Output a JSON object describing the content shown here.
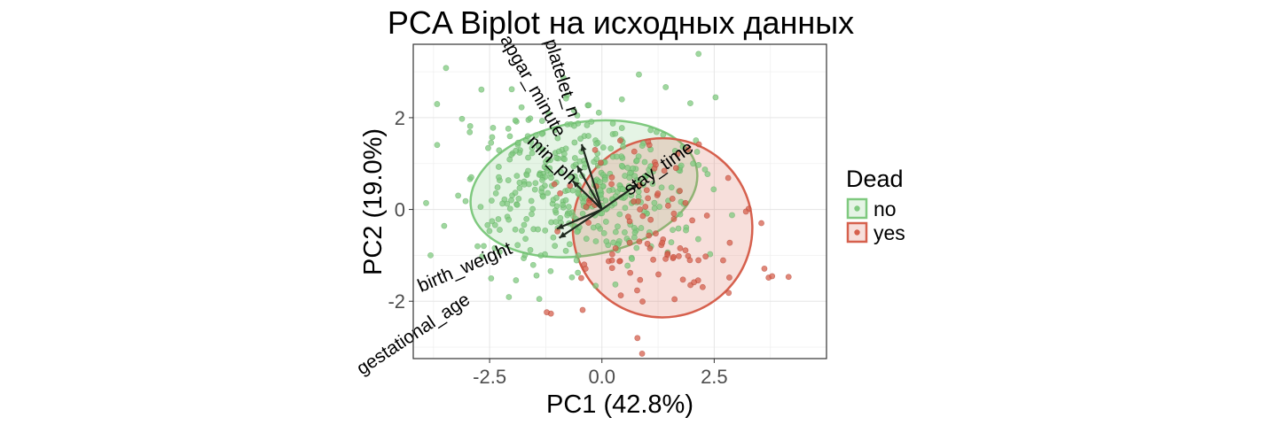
{
  "chart_data": {
    "type": "scatter",
    "title": "PCA Biplot на исходных данных",
    "xlabel": "PC1 (42.8%)",
    "ylabel": "PC2 (19.0%)",
    "xlim": [
      -4.2,
      5.0
    ],
    "ylim": [
      -3.25,
      3.6
    ],
    "x_ticks": [
      -2.5,
      0.0,
      2.5
    ],
    "x_tick_labels": [
      "-2.5",
      "0.0",
      "2.5"
    ],
    "y_ticks": [
      -2,
      0,
      2
    ],
    "y_tick_labels": [
      "-2",
      "0",
      "2"
    ],
    "grid": true,
    "legend": {
      "title": "Dead",
      "placement": "right",
      "entries": [
        {
          "label": "no",
          "color": "#7fc97f"
        },
        {
          "label": "yes",
          "color": "#d6604d"
        }
      ]
    },
    "series": [
      {
        "name": "no",
        "color": "#7fc97f",
        "ellipse": {
          "center": [
            -0.4,
            0.45
          ],
          "rx": 2.55,
          "ry": 1.45,
          "angle_deg": -10
        }
      },
      {
        "name": "yes",
        "color": "#d6604d",
        "ellipse": {
          "center": [
            1.35,
            -0.4
          ],
          "rx": 2.0,
          "ry": 1.95,
          "angle_deg": -30
        }
      }
    ],
    "loadings": [
      {
        "name": "apgar_minute",
        "x": -0.55,
        "y": 0.95
      },
      {
        "name": "platelet_n",
        "x": -0.45,
        "y": 1.42
      },
      {
        "name": "min_ph",
        "x": -0.65,
        "y": 0.62
      },
      {
        "name": "stay_time",
        "x": 0.8,
        "y": 0.55
      },
      {
        "name": "birth_weight",
        "x": -1.0,
        "y": -0.42
      },
      {
        "name": "gestational_age",
        "x": -0.95,
        "y": -0.62
      }
    ]
  }
}
